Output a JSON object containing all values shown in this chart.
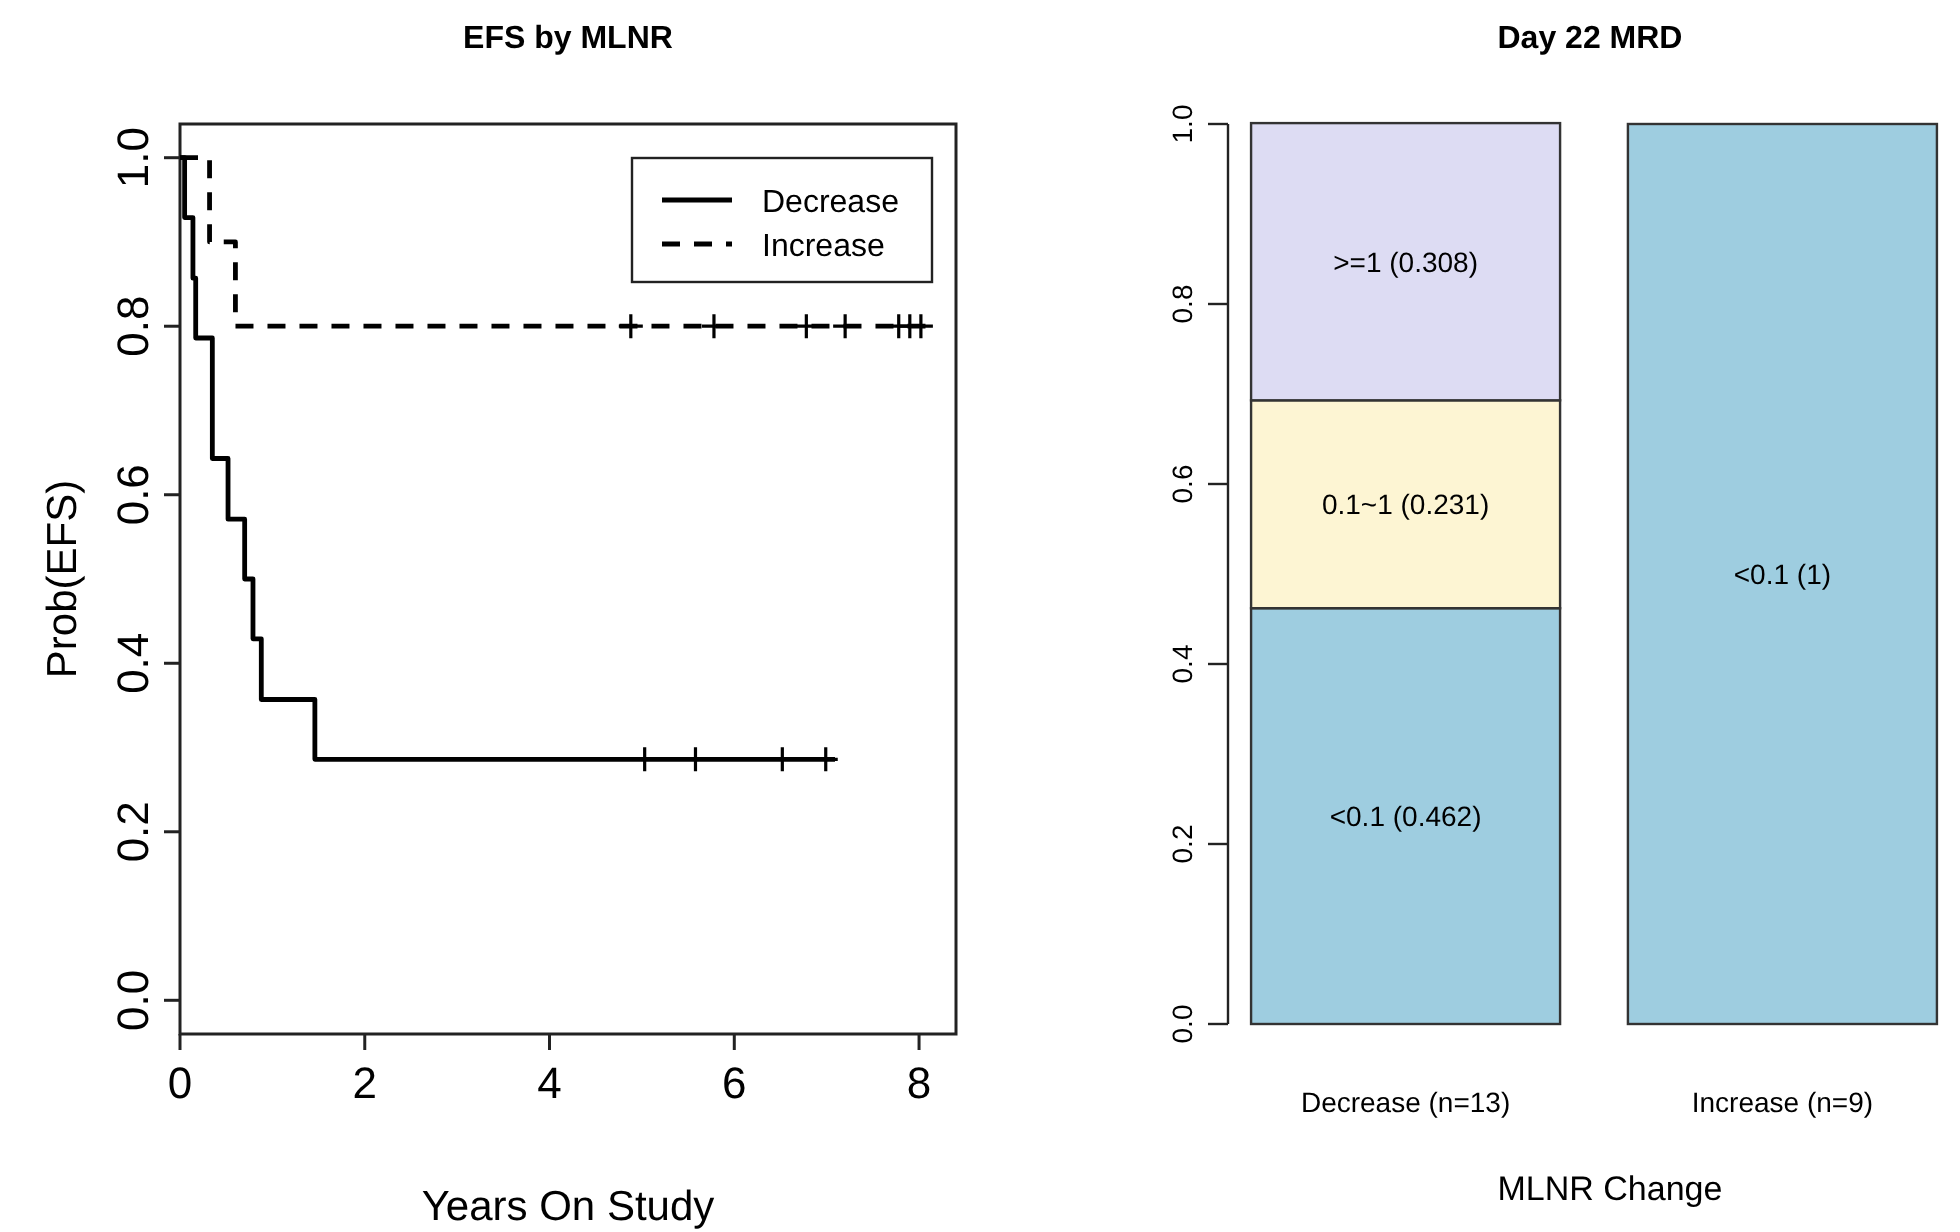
{
  "chart_data": [
    {
      "type": "step",
      "title": "EFS by MLNR",
      "xlabel": "Years On Study",
      "ylabel": "Prob(EFS)",
      "xlim": [
        0,
        8.4
      ],
      "xticks": [
        0,
        2,
        4,
        6,
        8
      ],
      "ylim": [
        -0.04,
        1.04
      ],
      "yticks": [
        {
          "value": 0,
          "label": "0.0"
        },
        {
          "value": 0.2,
          "label": "0.2"
        },
        {
          "value": 0.4,
          "label": "0.4"
        },
        {
          "value": 0.6,
          "label": "0.6"
        },
        {
          "value": 0.8,
          "label": "0.8"
        },
        {
          "value": 1,
          "label": "1.0"
        }
      ],
      "legend": "top right",
      "grid": false,
      "series": [
        {
          "name": "Decrease",
          "color": "#000000",
          "line_style": "solid",
          "x": [
            0,
            0.05,
            0.14,
            0.17,
            0.35,
            0.52,
            0.7,
            0.79,
            0.88,
            1.46,
            7.09
          ],
          "values": [
            1,
            0.929,
            0.857,
            0.786,
            0.643,
            0.571,
            0.5,
            0.429,
            0.357,
            0.286,
            0.286
          ]
        },
        {
          "name": "Increase",
          "color": "#000000",
          "line_style": "dashed",
          "x": [
            0,
            0.32,
            0.6,
            8.13
          ],
          "values": [
            1,
            0.9,
            0.8,
            0.8
          ]
        },
        {
          "type": "scatter",
          "color": "#000000",
          "marker": "cross",
          "x": [
            5.03,
            5.58,
            6.52,
            6.99
          ],
          "values": [
            0.286,
            0.286,
            0.286,
            0.286
          ]
        },
        {
          "type": "scatter",
          "color": "#000000",
          "marker": "cross",
          "x": [
            4.88,
            5.78,
            6.78,
            7.2,
            7.78,
            7.9,
            8.02
          ],
          "values": [
            0.8,
            0.8,
            0.8,
            0.8,
            0.8,
            0.8,
            0.8
          ]
        }
      ]
    },
    {
      "type": "bar",
      "stacked": true,
      "title": "Day 22 MRD",
      "xlabel": "MLNR Change",
      "categories": [
        "Decrease (n=13)",
        "Increase (n=9)"
      ],
      "ylim": [
        0,
        1
      ],
      "yticks": [
        {
          "value": 0,
          "label": "0.0"
        },
        {
          "value": 0.2,
          "label": "0.2"
        },
        {
          "value": 0.4,
          "label": "0.4"
        },
        {
          "value": 0.6,
          "label": "0.6"
        },
        {
          "value": 0.8,
          "label": "0.8"
        },
        {
          "value": 1,
          "label": "1.0"
        }
      ],
      "series": [
        {
          "color": "#9ecde0",
          "values": [
            0.462,
            1
          ],
          "value_labels": [
            "<0.1 (0.462)",
            "<0.1 (1)"
          ]
        },
        {
          "color": "#fdf5d3",
          "values": [
            0.231,
            null
          ],
          "value_labels": [
            "0.1~1 (0.231)",
            null
          ]
        },
        {
          "color": "#dddcf3",
          "values": [
            0.308,
            null
          ],
          "value_labels": [
            ">=1 (0.308)",
            null
          ]
        }
      ]
    }
  ]
}
